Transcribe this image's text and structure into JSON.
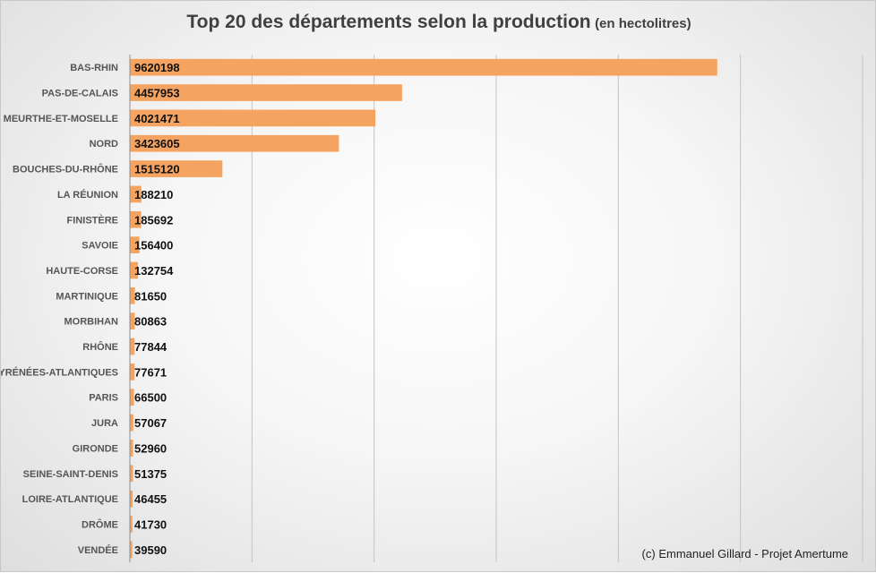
{
  "chart_data": {
    "type": "bar",
    "orientation": "horizontal",
    "title": "Top 20 des départements selon la production",
    "subtitle": "(en hectolitres)",
    "categories": [
      "BAS-RHIN",
      "PAS-DE-CALAIS",
      "MEURTHE-ET-MOSELLE",
      "NORD",
      "BOUCHES-DU-RHÔNE",
      "LA RÉUNION",
      "FINISTÈRE",
      "SAVOIE",
      "HAUTE-CORSE",
      "MARTINIQUE",
      "MORBIHAN",
      "RHÔNE",
      "PYRÉNÉES-ATLANTIQUES",
      "PARIS",
      "JURA",
      "GIRONDE",
      "SEINE-SAINT-DENIS",
      "LOIRE-ATLANTIQUE",
      "DRÔME",
      "VENDÉE"
    ],
    "values": [
      9620198,
      4457953,
      4021471,
      3423605,
      1515120,
      188210,
      185692,
      156400,
      132754,
      81650,
      80863,
      77844,
      77671,
      66500,
      57067,
      52960,
      51375,
      46455,
      41730,
      39590
    ],
    "xlim": [
      0,
      12000000
    ],
    "x_gridlines": true,
    "x_tick_labels_visible": false,
    "bar_color": "#F4A460",
    "data_labels": true
  },
  "credit": "(c) Emmanuel Gillard - Projet Amertume"
}
